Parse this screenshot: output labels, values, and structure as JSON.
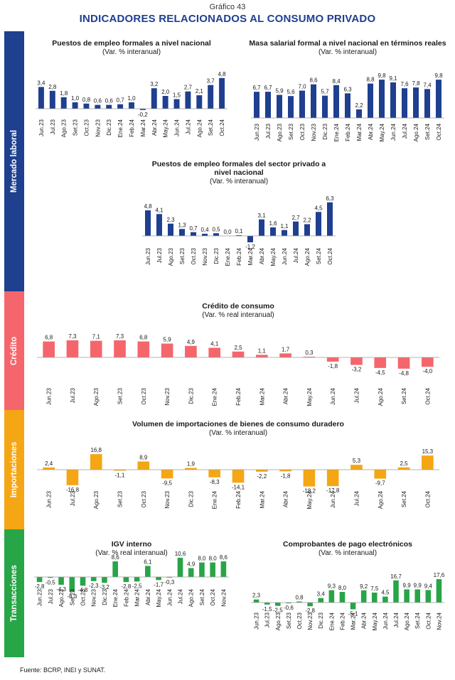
{
  "header": {
    "number": "Gráfico 43",
    "title": "INDICADORES RELACIONADOS AL CONSUMO PRIVADO"
  },
  "sections": [
    {
      "label": "Mercado laboral",
      "color": "#1f3f8f"
    },
    {
      "label": "Crédito",
      "color": "#f4666c"
    },
    {
      "label": "Importaciones",
      "color": "#f5a614"
    },
    {
      "label": "Transacciones",
      "color": "#27a547"
    }
  ],
  "footer": {
    "source": "Fuente: BCRP, INEI y SUNAT."
  },
  "chart_data": [
    {
      "type": "bar",
      "title": "Puestos de empleo formales a nivel nacional",
      "subtitle": "(Var. % interanual)",
      "color": "#1f3f8f",
      "categories": [
        "Jun.23",
        "Jul.23",
        "Ago.23",
        "Set.23",
        "Oct.23",
        "Nov.23",
        "Dic.23",
        "Ene.24",
        "Feb.24",
        "Mar.24",
        "Abr.24",
        "May.24",
        "Jun.24",
        "Jul.24",
        "Ago.24",
        "Set.24",
        "Oct.24"
      ],
      "values": [
        3.4,
        2.8,
        1.8,
        1.0,
        0.8,
        0.6,
        0.6,
        0.7,
        1.0,
        -0.2,
        3.2,
        2.0,
        1.5,
        2.7,
        2.1,
        3.7,
        4.8
      ],
      "labels": [
        "3,4",
        "2,8",
        "1,8",
        "1,0",
        "0,8",
        "0,6",
        "0,6",
        "0,7",
        "1,0",
        "-0,2",
        "3,2",
        "2,0",
        "1,5",
        "2,7",
        "2,1",
        "3,7",
        "4,8"
      ]
    },
    {
      "type": "bar",
      "title": "Masa salarial formal a nivel nacional en términos reales",
      "subtitle": "(Var. % interanual)",
      "color": "#1f3f8f",
      "categories": [
        "Jun.23",
        "Jul.23",
        "Ago.23",
        "Set.23",
        "Oct.23",
        "Nov.23",
        "Dic.23",
        "Ene.24",
        "Feb.24",
        "Mar.24",
        "Abr.24",
        "May.24",
        "Jun.24",
        "Jul.24",
        "Ago.24",
        "Set.24",
        "Oct.24"
      ],
      "values": [
        6.7,
        6.7,
        5.9,
        5.6,
        7.0,
        8.6,
        5.7,
        8.4,
        6.3,
        2.2,
        8.8,
        9.8,
        9.1,
        7.6,
        7.8,
        7.4,
        9.8
      ],
      "labels": [
        "6,7",
        "6,7",
        "5,9",
        "5,6",
        "7,0",
        "8,6",
        "5,7",
        "8,4",
        "6,3",
        "2,2",
        "8,8",
        "9,8",
        "9,1",
        "7,6",
        "7,8",
        "7,4",
        "9,8"
      ]
    },
    {
      "type": "bar",
      "title": "Puestos de empleo formales del sector privado a nivel nacional",
      "title_lines": [
        "Puestos de empleo formales del sector privado a",
        "nivel nacional"
      ],
      "subtitle": "(Var. % interanual)",
      "color": "#1f3f8f",
      "categories": [
        "Jun.23",
        "Jul.23",
        "Ago.23",
        "Set.23",
        "Oct.23",
        "Nov.23",
        "Dic.23",
        "Ene.24",
        "Feb.24",
        "Mar.24",
        "Abr.24",
        "May.24",
        "Jun.24",
        "Jul.24",
        "Ago.24",
        "Set.24",
        "Oct.24"
      ],
      "values": [
        4.8,
        4.1,
        2.3,
        1.3,
        0.7,
        0.4,
        0.5,
        0.0,
        0.1,
        -1.2,
        3.1,
        1.6,
        1.1,
        2.7,
        2.2,
        4.5,
        6.3
      ],
      "labels": [
        "4,8",
        "4,1",
        "2,3",
        "1,3",
        "0,7",
        "0,4",
        "0,5",
        "0,0",
        "0,1",
        "-1,2",
        "3,1",
        "1,6",
        "1,1",
        "2,7",
        "2,2",
        "4,5",
        "6,3"
      ]
    },
    {
      "type": "bar",
      "title": "Crédito de consumo",
      "subtitle": "(Var. % real interanual)",
      "color": "#f4666c",
      "categories": [
        "Jun.23",
        "Jul.23",
        "Ago.23",
        "Set.23",
        "Oct.23",
        "Nov.23",
        "Dic.23",
        "Ene.24",
        "Feb.24",
        "Mar.24",
        "Abr.24",
        "May.24",
        "Jun.24",
        "Jul.24",
        "Ago.24",
        "Set.24",
        "Oct.24"
      ],
      "values": [
        6.8,
        7.3,
        7.1,
        7.3,
        6.8,
        5.9,
        4.9,
        4.1,
        2.5,
        1.1,
        1.7,
        0.3,
        -1.8,
        -3.2,
        -4.5,
        -4.8,
        -4.0
      ],
      "labels": [
        "6,8",
        "7,3",
        "7,1",
        "7,3",
        "6,8",
        "5,9",
        "4,9",
        "4,1",
        "2,5",
        "1,1",
        "1,7",
        "0,3",
        "-1,8",
        "-3,2",
        "-4,5",
        "-4,8",
        "-4,0"
      ]
    },
    {
      "type": "bar",
      "title": "Volumen de importaciones de bienes de consumo duradero",
      "subtitle": "(Var. % interanual)",
      "color": "#f5a614",
      "categories": [
        "Jun.23",
        "Jul.23",
        "Ago.23",
        "Set.23",
        "Oct.23",
        "Nov.23",
        "Dic.23",
        "Ene.24",
        "Feb.24",
        "Mar.24",
        "Abr.24",
        "May.24",
        "Jun.24",
        "Jul.24",
        "Ago.24",
        "Set.24",
        "Oct.24"
      ],
      "values": [
        2.4,
        -16.8,
        16.8,
        -1.1,
        8.9,
        -9.5,
        1.9,
        -8.3,
        -14.1,
        -2.2,
        -1.8,
        -18.2,
        -17.8,
        5.3,
        -9.7,
        2.5,
        15.3
      ],
      "labels": [
        "2,4",
        "-16,8",
        "16,8",
        "-1,1",
        "8,9",
        "-9,5",
        "1,9",
        "-8,3",
        "-14,1",
        "-2,2",
        "-1,8",
        "-18,2",
        "-17,8",
        "5,3",
        "-9,7",
        "2,5",
        "15,3"
      ]
    },
    {
      "type": "bar",
      "title": "IGV interno",
      "subtitle": "(Var. % real interanual)",
      "color": "#27a547",
      "categories": [
        "Jun.23",
        "Jul.23",
        "Ago.23",
        "Set.23",
        "Oct.23",
        "Nov.23",
        "Dic.23",
        "Ene.24",
        "Feb.24",
        "Mar.24",
        "Abr.24",
        "May.24",
        "Jun.24",
        "Jul.24",
        "Ago.24",
        "Set.24",
        "Oct.24",
        "Nov.24"
      ],
      "values": [
        -2.8,
        -0.5,
        -4.3,
        -8.3,
        -4.8,
        -2.3,
        -3.2,
        8.6,
        -2.8,
        -2.5,
        6.1,
        -1.7,
        -0.3,
        10.6,
        4.9,
        8.0,
        8.0,
        8.6
      ],
      "labels": [
        "-2,8",
        "-0,5",
        "-4,3",
        "-8,3",
        "-4,8",
        "-2,3",
        "-3,2",
        "8,6",
        "-2,8",
        "-2,5",
        "6,1",
        "-1,7",
        "-0,3",
        "10,6",
        "4,9",
        "8,0",
        "8,0",
        "8,6"
      ]
    },
    {
      "type": "bar",
      "title": "Comprobantes de pago electrónicos",
      "subtitle": "(Var. % interanual)",
      "color": "#27a547",
      "categories": [
        "Jun.23",
        "Jul.23",
        "Ago.23",
        "Set.23",
        "Oct.23",
        "Nov.23",
        "Dic.23",
        "Ene.24",
        "Feb.24",
        "Mar.24",
        "Abr.24",
        "May.24",
        "Jun.24",
        "Jul.24",
        "Ago.24",
        "Set.24",
        "Oct.24",
        "Nov.24"
      ],
      "values": [
        2.3,
        -1.5,
        -2.5,
        -0.6,
        0.8,
        -2.8,
        3.4,
        9.3,
        8.0,
        -5.1,
        9.2,
        7.5,
        4.5,
        16.7,
        9.9,
        9.9,
        9.4,
        17.6
      ],
      "labels": [
        "2,3",
        "-1,5",
        "-2,5",
        "-0,6",
        "0,8",
        "-2,8",
        "3,4",
        "9,3",
        "8,0",
        "-5,1",
        "9,2",
        "7,5",
        "4,5",
        "16,7",
        "9,9",
        "9,9",
        "9,4",
        "17,6"
      ]
    }
  ]
}
